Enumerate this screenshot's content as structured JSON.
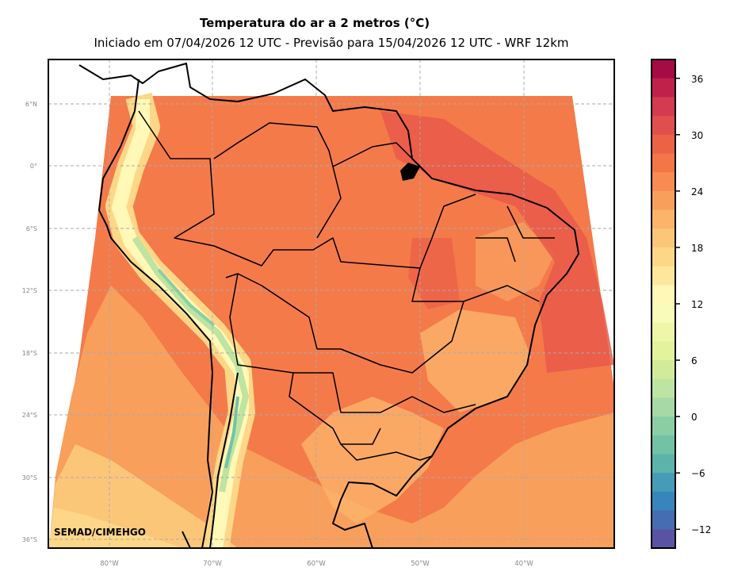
{
  "title": "Temperatura do ar a 2 metros (°C)",
  "subtitle": "Iniciado em 07/04/2026 12 UTC - Previsão para 15/04/2026 12 UTC - WRF 12km",
  "credit": "SEMAD/CIMEHGO",
  "lat_labels": [
    "6°N",
    "0°",
    "6°S",
    "12°S",
    "18°S",
    "24°S",
    "30°S",
    "36°S"
  ],
  "lon_labels": [
    "80°W",
    "70°W",
    "60°W",
    "50°W",
    "40°W"
  ],
  "colorbar": {
    "ticks": [
      "36",
      "30",
      "24",
      "18",
      "12",
      "6",
      "0",
      "−6",
      "−12"
    ],
    "range": [
      -14,
      38
    ],
    "step": 2,
    "colors": [
      "#a50b45",
      "#c0214b",
      "#d43a50",
      "#e04f4d",
      "#ec6247",
      "#f47647",
      "#f78b51",
      "#f99f5c",
      "#fbb46a",
      "#fcc679",
      "#fdd787",
      "#fee79a",
      "#fff8b6",
      "#f8fbba",
      "#eef7a8",
      "#e3f39d",
      "#d2eb9b",
      "#bde4a0",
      "#a6d9a4",
      "#8bcea5",
      "#72c3a6",
      "#5bb3aa",
      "#469cb6",
      "#3686bd",
      "#446db2",
      "#5a53a3"
    ]
  }
}
